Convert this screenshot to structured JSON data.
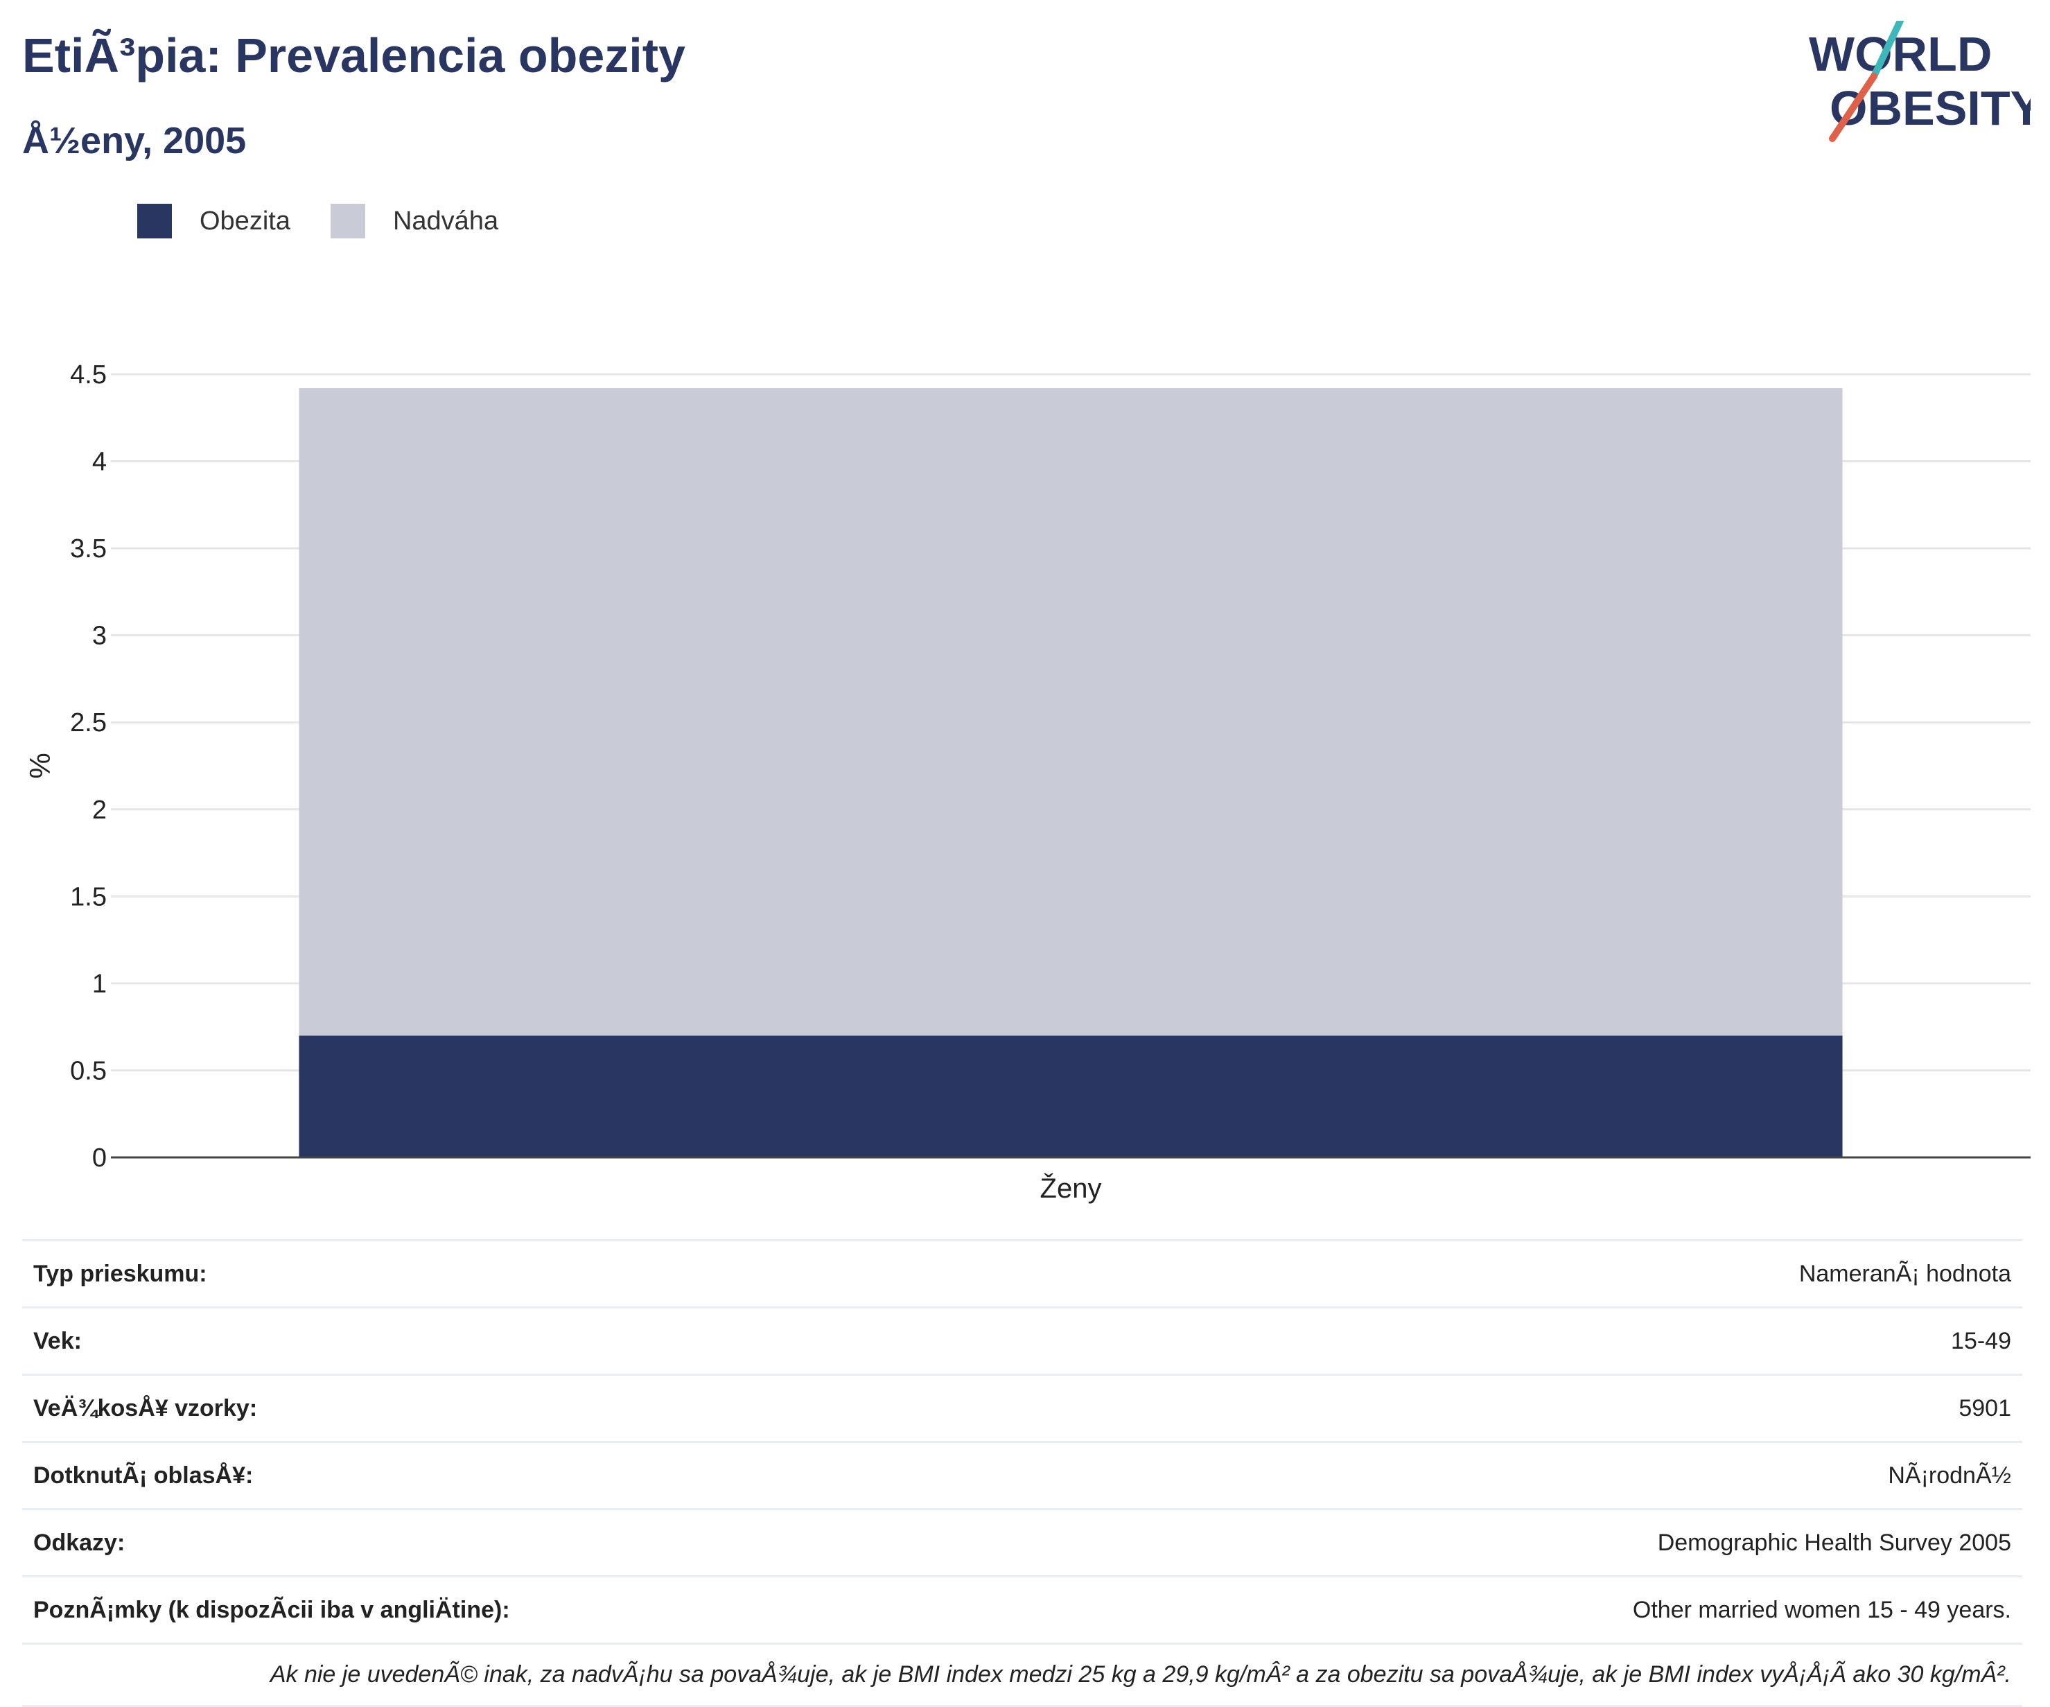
{
  "header": {
    "title": "EtiÃ³pia: Prevalencia obezity",
    "subtitle": "Å½eny, 2005"
  },
  "logo": {
    "line1": "WORLD",
    "line2": "OBESITY",
    "colors": {
      "text": "#2a3662",
      "slash_red": "#e0614a",
      "slash_teal": "#3fb6b9"
    }
  },
  "legend": {
    "items": [
      {
        "label": "Obezita",
        "color": "#2a3662"
      },
      {
        "label": "Nadváha",
        "color": "#c9ccd7"
      }
    ]
  },
  "chart_data": {
    "type": "bar",
    "stacked": true,
    "categories": [
      "Ženy"
    ],
    "series": [
      {
        "name": "Obezita",
        "values": [
          0.7
        ],
        "color": "#2a3662"
      },
      {
        "name": "Nadváha",
        "values": [
          3.72
        ],
        "color": "#c9ccd7"
      }
    ],
    "xlabel": "",
    "ylabel": "%",
    "ylim": [
      0,
      4.5
    ],
    "yticks": [
      "0",
      "0.5",
      "1",
      "1.5",
      "2",
      "2.5",
      "3",
      "3.5",
      "4",
      "4.5"
    ],
    "grid": true,
    "legend_position": "top-left"
  },
  "info": {
    "rows": [
      {
        "key": "Typ prieskumu:",
        "value": "NameranÃ¡ hodnota"
      },
      {
        "key": "Vek:",
        "value": "15-49"
      },
      {
        "key": "VeÄ¾kosÅ¥ vzorky:",
        "value": "5901"
      },
      {
        "key": "DotknutÃ¡ oblasÅ¥:",
        "value": "NÃ¡rodnÃ½"
      },
      {
        "key": "Odkazy:",
        "value": "Demographic Health Survey 2005"
      },
      {
        "key": "PoznÃ¡mky (k dispozÃcii iba v angliÄ\btine):",
        "value": "Other married women 15 - 49 years."
      }
    ],
    "note": "Ak nie je uvedenÃ© inak, za nadvÃ¡hu sa povaÅ¾uje, ak je BMI index medzi 25 kg a 29,9 kg/mÂ² a za obezitu sa povaÅ¾uje, ak je BMI index vyÅ¡Å¡Ã ako 30 kg/mÂ²."
  }
}
